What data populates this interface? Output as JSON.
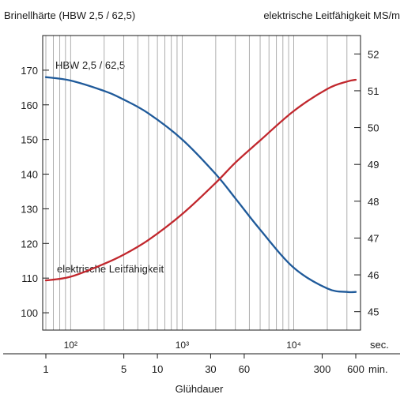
{
  "chart_data": {
    "type": "line",
    "left_axis_label": "Brinellhärte (HBW 2,5 / 62,5)",
    "right_axis_label": "elektrische Leitfähigkeit MS/m",
    "x_axis_label": "Glühdauer",
    "left_ticks": [
      100,
      110,
      120,
      130,
      140,
      150,
      160,
      170
    ],
    "right_ticks": [
      45,
      46,
      47,
      48,
      49,
      50,
      51,
      52
    ],
    "ylim_left": [
      95,
      180
    ],
    "ylim_right": [
      44.5,
      52.5
    ],
    "x_scale": "log",
    "x_unit": "sec.",
    "x_range_sec": [
      60,
      36000
    ],
    "sec_ticks": [
      {
        "value": 100,
        "label": "10²"
      },
      {
        "value": 1000,
        "label": "10³"
      },
      {
        "value": 10000,
        "label": "10⁴"
      }
    ],
    "min_unit": "min.",
    "min_ticks": [
      {
        "value": 1,
        "label": "1"
      },
      {
        "value": 5,
        "label": "5"
      },
      {
        "value": 10,
        "label": "10"
      },
      {
        "value": 30,
        "label": "30"
      },
      {
        "value": 60,
        "label": "60"
      },
      {
        "value": 300,
        "label": "300"
      },
      {
        "value": 600,
        "label": "600"
      }
    ],
    "grid": true,
    "series": [
      {
        "name": "HBW 2,5 / 62,5",
        "axis": "left",
        "color": "#1f5a9a",
        "x": [
          60,
          100,
          200,
          300,
          500,
          1000,
          2000,
          3000,
          5000,
          10000,
          20000,
          30000,
          36000
        ],
        "y": [
          168,
          167,
          164,
          161.5,
          157.5,
          150,
          140,
          133,
          124,
          113,
          107,
          106,
          106
        ]
      },
      {
        "name": "elektrische Leitfähigkeit",
        "axis": "right",
        "color": "#c1272d",
        "x": [
          60,
          100,
          200,
          300,
          500,
          1000,
          2000,
          3000,
          5000,
          10000,
          20000,
          30000,
          36000
        ],
        "y": [
          45.85,
          45.95,
          46.3,
          46.55,
          46.95,
          47.65,
          48.5,
          49.05,
          49.65,
          50.45,
          51.05,
          51.25,
          51.3
        ]
      }
    ]
  }
}
